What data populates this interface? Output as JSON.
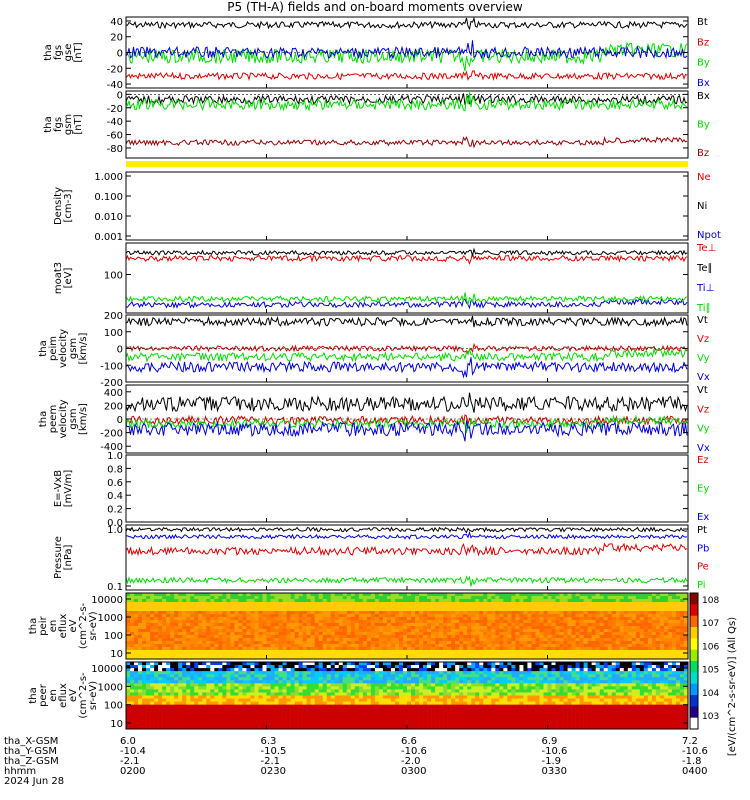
{
  "title": "P5 (TH-A) fields and on-board moments overview",
  "footer": {
    "rows": [
      {
        "label": "tha_X-GSM",
        "values": [
          "6.0",
          "6.3",
          "6.6",
          "6.9",
          "7.2"
        ]
      },
      {
        "label": "tha_Y-GSM",
        "values": [
          "-10.4",
          "-10.5",
          "-10.6",
          "-10.6",
          "-10.6"
        ]
      },
      {
        "label": "tha_Z-GSM",
        "values": [
          "-2.1",
          "-2.1",
          "-2.0",
          "-1.9",
          "-1.8"
        ]
      },
      {
        "label": "hhmm",
        "values": [
          "0200",
          "0230",
          "0300",
          "0330",
          "0400"
        ]
      }
    ],
    "date": "2024 Jun 28"
  },
  "chart_data": [
    {
      "type": "line",
      "name": "fgs_gse",
      "ylabel": [
        "tha",
        "fgs",
        "gse",
        "[nT]"
      ],
      "ylim": [
        -45,
        45
      ],
      "ticks": [
        -40,
        -20,
        0,
        20,
        40
      ],
      "series": [
        {
          "name": "Bt",
          "color": "#000000",
          "base": 35,
          "amp": 4
        },
        {
          "name": "Bz",
          "color": "#dd0000",
          "base": -30,
          "amp": 4
        },
        {
          "name": "By",
          "color": "#00dd00",
          "base": -5,
          "amp": 9
        },
        {
          "name": "Bx",
          "color": "#0000dd",
          "base": 0,
          "amp": 7
        }
      ]
    },
    {
      "type": "line",
      "name": "fgs_gsm",
      "ylabel": [
        "tha",
        "fgs",
        "gsm",
        "[nT]"
      ],
      "ylim": [
        -95,
        5
      ],
      "ticks": [
        -80,
        -60,
        -40,
        -20,
        0
      ],
      "series": [
        {
          "name": "Bx",
          "color": "#000000",
          "base": -8,
          "amp": 6
        },
        {
          "name": "By",
          "color": "#00dd00",
          "base": -15,
          "amp": 8
        },
        {
          "name": "Bz",
          "color": "#990000",
          "base": -72,
          "amp": 4
        }
      ]
    },
    {
      "type": "line",
      "name": "density",
      "ylabel": [
        "Density",
        "[cm-3]"
      ],
      "ylim": [
        0.001,
        1
      ],
      "log": true,
      "ticks": [
        "1.000",
        "0.100",
        "0.010",
        "0.001"
      ],
      "series": [
        {
          "name": "Ne",
          "color": "#dd0000"
        },
        {
          "name": "Ni",
          "color": "#000000"
        },
        {
          "name": "Npot",
          "color": "#0000dd"
        }
      ]
    },
    {
      "type": "line",
      "name": "temperature",
      "ylabel": [
        "moat3",
        "[eV]"
      ],
      "ticks": [
        "100"
      ],
      "series": [
        {
          "name": "Te⊥",
          "color": "#dd0000",
          "base": 0.78,
          "amp": 0.04
        },
        {
          "name": "Te∥",
          "color": "#000000",
          "base": 0.86,
          "amp": 0.03
        },
        {
          "name": "Ti⊥",
          "color": "#0000dd",
          "base": 0.12,
          "amp": 0.04
        },
        {
          "name": "Ti∥",
          "color": "#00dd00",
          "base": 0.2,
          "amp": 0.04
        }
      ]
    },
    {
      "type": "line",
      "name": "peim_velocity",
      "ylabel": [
        "tha",
        "peim",
        "velocity",
        "gsm",
        "[km/s]"
      ],
      "ylim": [
        -200,
        200
      ],
      "ticks": [
        -200,
        -100,
        0,
        100,
        200
      ],
      "series": [
        {
          "name": "Vt",
          "color": "#000000",
          "base": 160,
          "amp": 25
        },
        {
          "name": "Vz",
          "color": "#dd0000",
          "base": 0,
          "amp": 15
        },
        {
          "name": "Vy",
          "color": "#00dd00",
          "base": -50,
          "amp": 25
        },
        {
          "name": "Vx",
          "color": "#0000dd",
          "base": -110,
          "amp": 30
        }
      ]
    },
    {
      "type": "line",
      "name": "peem_velocity",
      "ylabel": [
        "tha",
        "peem",
        "velocity",
        "gsm",
        "[km/s]"
      ],
      "ylim": [
        -500,
        500
      ],
      "ticks": [
        -400,
        -200,
        0,
        200,
        400
      ],
      "series": [
        {
          "name": "Vt",
          "color": "#000000",
          "base": 220,
          "amp": 110
        },
        {
          "name": "Vz",
          "color": "#dd0000",
          "base": -20,
          "amp": 60
        },
        {
          "name": "Vy",
          "color": "#00dd00",
          "base": -70,
          "amp": 60
        },
        {
          "name": "Vx",
          "color": "#0000dd",
          "base": -150,
          "amp": 100
        }
      ]
    },
    {
      "type": "line",
      "name": "efield",
      "ylabel": [
        "E=-VxB",
        "[mV/m]"
      ],
      "ylim": [
        0,
        1
      ],
      "ticks": [
        "0.0",
        "0.2",
        "0.4",
        "0.6",
        "0.8",
        "1.0"
      ],
      "series": [
        {
          "name": "Ez",
          "color": "#dd0000"
        },
        {
          "name": "Ey",
          "color": "#00dd00"
        },
        {
          "name": "Ex",
          "color": "#0000dd"
        }
      ]
    },
    {
      "type": "line",
      "name": "pressure",
      "ylabel": [
        "Pressure",
        "[nPa]"
      ],
      "log": true,
      "ticks": [
        "1.0",
        "0.1"
      ],
      "series": [
        {
          "name": "Pt",
          "color": "#000000",
          "base": 0.93,
          "amp": 0.03
        },
        {
          "name": "Pb",
          "color": "#0000dd",
          "base": 0.82,
          "amp": 0.03
        },
        {
          "name": "Pe",
          "color": "#dd0000",
          "base": 0.6,
          "amp": 0.06
        },
        {
          "name": "Pi",
          "color": "#00dd00",
          "base": 0.15,
          "amp": 0.04
        }
      ]
    },
    {
      "type": "heatmap",
      "name": "peir_spectrogram",
      "ylabel": [
        "tha",
        "peir",
        "en",
        "eflux",
        "eV",
        "(cm^2-s-",
        "sr-eV)"
      ],
      "ticks": [
        "10000",
        "1000",
        "100",
        "10"
      ]
    },
    {
      "type": "heatmap",
      "name": "peer_spectrogram",
      "ylabel": [
        "tha",
        "peer",
        "en",
        "eflux",
        "eV",
        "(cm^2-s-",
        "sr-eV)"
      ],
      "ticks": [
        "10000",
        "1000",
        "100",
        "10"
      ]
    }
  ],
  "colorbar": {
    "label": "[eV/(cm^2-s-sr-eV)] (All Qs)",
    "ticks": [
      "10^8",
      "10^7",
      "10^6",
      "10^5",
      "10^4",
      "10^3"
    ]
  },
  "colors": {
    "state_bar": "#ffee00"
  }
}
